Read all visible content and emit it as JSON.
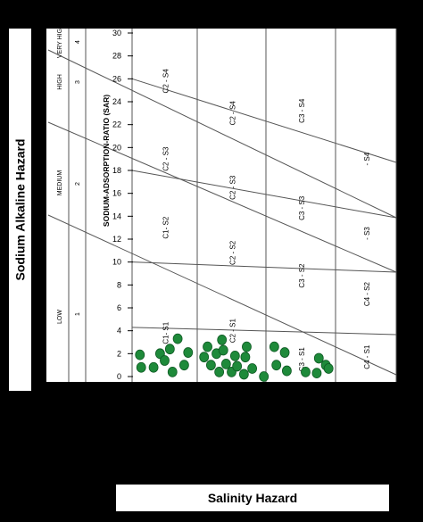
{
  "chart_data": {
    "type": "scatter",
    "title": "",
    "ylabel": "Sodium Alkaline Hazard",
    "xlabel": "Salinity Hazard",
    "sar_axis_label": "SODIUM-ADSORPTION-RATIO (SAR)",
    "ylim": [
      0,
      30
    ],
    "yticks": [
      0,
      2,
      4,
      6,
      8,
      10,
      12,
      14,
      16,
      18,
      20,
      22,
      24,
      26,
      28,
      30
    ],
    "sodium_classes": [
      {
        "label": "LOW",
        "number": "1"
      },
      {
        "label": "MEDIUM",
        "number": "2"
      },
      {
        "label": "HIGH",
        "number": "3"
      },
      {
        "label": "VERY HIGH",
        "number": "4"
      }
    ],
    "class_labels": [
      {
        "text": "C2 - S4",
        "col": 1,
        "sar": 25.8
      },
      {
        "text": "C2 - S4",
        "col": 2,
        "sar": 23.0
      },
      {
        "text": "C3 - S4",
        "col": 3,
        "sar": 23.2
      },
      {
        "text": "- S4",
        "col": 4,
        "sar": 19.0
      },
      {
        "text": "C2 - S3",
        "col": 1,
        "sar": 19.0
      },
      {
        "text": "C2 - S3",
        "col": 2,
        "sar": 16.5
      },
      {
        "text": "C3 - S3",
        "col": 3,
        "sar": 14.7
      },
      {
        "text": "- S3",
        "col": 4,
        "sar": 12.5
      },
      {
        "text": "C1- S2",
        "col": 1,
        "sar": 13.0
      },
      {
        "text": "C2 - S2",
        "col": 2,
        "sar": 10.8
      },
      {
        "text": "C3 - S2",
        "col": 3,
        "sar": 8.8
      },
      {
        "text": "C4 - S2",
        "col": 4,
        "sar": 7.2
      },
      {
        "text": "C1- S1",
        "col": 1,
        "sar": 3.8
      },
      {
        "text": "C2 - S1",
        "col": 2,
        "sar": 4.0
      },
      {
        "text": "C3 - S1",
        "col": 3,
        "sar": 1.5
      },
      {
        "text": "C4 - S1",
        "col": 4,
        "sar": 1.7
      }
    ],
    "points": [
      {
        "col": 1,
        "pos": 0.12,
        "sar": 1.9
      },
      {
        "col": 1,
        "pos": 0.14,
        "sar": 0.8
      },
      {
        "col": 1,
        "pos": 0.33,
        "sar": 0.8
      },
      {
        "col": 1,
        "pos": 0.43,
        "sar": 2.0
      },
      {
        "col": 1,
        "pos": 0.5,
        "sar": 1.4
      },
      {
        "col": 1,
        "pos": 0.58,
        "sar": 2.4
      },
      {
        "col": 1,
        "pos": 0.7,
        "sar": 3.3
      },
      {
        "col": 1,
        "pos": 0.62,
        "sar": 0.4
      },
      {
        "col": 1,
        "pos": 0.8,
        "sar": 1.0
      },
      {
        "col": 1,
        "pos": 0.86,
        "sar": 2.1
      },
      {
        "col": 2,
        "pos": 0.1,
        "sar": 1.7
      },
      {
        "col": 2,
        "pos": 0.15,
        "sar": 2.6
      },
      {
        "col": 2,
        "pos": 0.2,
        "sar": 1.0
      },
      {
        "col": 2,
        "pos": 0.28,
        "sar": 2.0
      },
      {
        "col": 2,
        "pos": 0.32,
        "sar": 0.4
      },
      {
        "col": 2,
        "pos": 0.36,
        "sar": 3.2
      },
      {
        "col": 2,
        "pos": 0.38,
        "sar": 2.3
      },
      {
        "col": 2,
        "pos": 0.42,
        "sar": 1.1
      },
      {
        "col": 2,
        "pos": 0.5,
        "sar": 0.4
      },
      {
        "col": 2,
        "pos": 0.55,
        "sar": 1.8
      },
      {
        "col": 2,
        "pos": 0.58,
        "sar": 0.9
      },
      {
        "col": 2,
        "pos": 0.68,
        "sar": 0.2
      },
      {
        "col": 2,
        "pos": 0.72,
        "sar": 2.6
      },
      {
        "col": 2,
        "pos": 0.7,
        "sar": 1.7
      },
      {
        "col": 2,
        "pos": 0.8,
        "sar": 0.7
      },
      {
        "col": 2,
        "pos": 0.97,
        "sar": 0.0
      },
      {
        "col": 3,
        "pos": 0.12,
        "sar": 2.6
      },
      {
        "col": 3,
        "pos": 0.15,
        "sar": 1.0
      },
      {
        "col": 3,
        "pos": 0.27,
        "sar": 2.1
      },
      {
        "col": 3,
        "pos": 0.3,
        "sar": 0.5
      },
      {
        "col": 3,
        "pos": 0.57,
        "sar": 0.4
      },
      {
        "col": 3,
        "pos": 0.73,
        "sar": 0.3
      },
      {
        "col": 3,
        "pos": 0.76,
        "sar": 1.6
      },
      {
        "col": 3,
        "pos": 0.86,
        "sar": 1.0
      },
      {
        "col": 3,
        "pos": 0.9,
        "sar": 0.7
      }
    ],
    "colors": {
      "plot_bg": "#ffffff",
      "frame_bg": "#000000",
      "point": "#1e8a3a",
      "point_edge": "#0f5a24",
      "lines": "#555555"
    },
    "grid": false,
    "legend": "none"
  }
}
